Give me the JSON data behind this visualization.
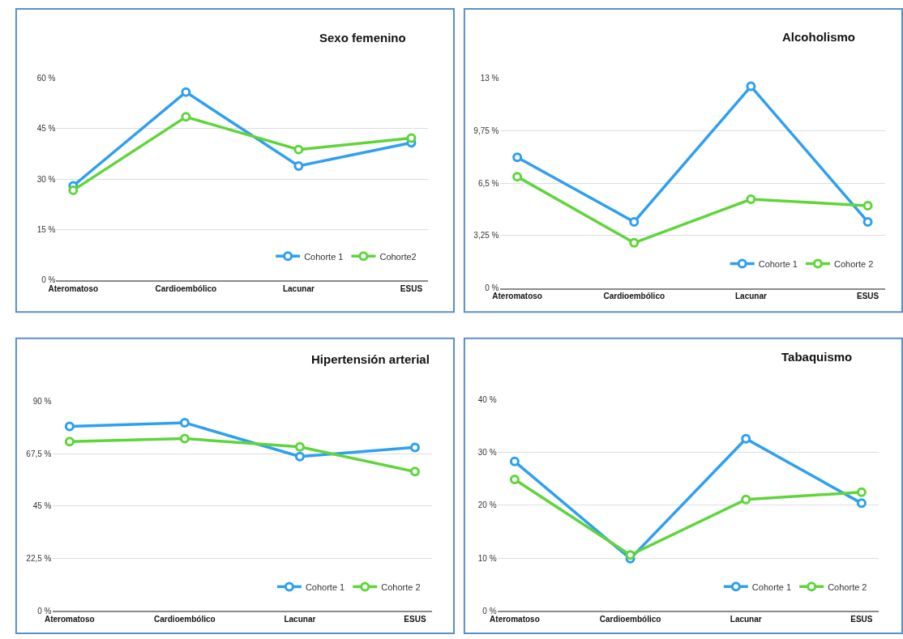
{
  "chart_data": [
    {
      "type": "line",
      "title": "Sexo femenino",
      "categories": [
        "Ateromatoso",
        "Cardioembólico",
        "Lacunar",
        "ESUS"
      ],
      "series": [
        {
          "name": "Cohorte 1",
          "color": "#2f9ff0",
          "values": [
            28.0,
            55.9,
            33.9,
            40.8
          ]
        },
        {
          "name": "Cohorte2",
          "color": "#5fd53b",
          "values": [
            26.7,
            48.5,
            38.8,
            42.2
          ]
        }
      ],
      "ylim": [
        0,
        60
      ],
      "yticks": [
        {
          "value": 0,
          "label": "0 %"
        },
        {
          "value": 15,
          "label": "15 %"
        },
        {
          "value": 30,
          "label": "30 %"
        },
        {
          "value": 45,
          "label": "45 %"
        },
        {
          "value": 60,
          "label": "60 %"
        }
      ],
      "grid": "y",
      "legend": "bottom right",
      "marker": "circle",
      "line_style": "solid"
    },
    {
      "type": "line",
      "title": "Alcoholismo",
      "categories": [
        "Ateromatoso",
        "Cardioembólico",
        "Lacunar",
        "ESUS"
      ],
      "series": [
        {
          "name": "Cohorte 1",
          "color": "#2f9ff0",
          "values": [
            8.1,
            4.1,
            12.5,
            4.1
          ]
        },
        {
          "name": "Cohorte 2",
          "color": "#5fd53b",
          "values": [
            6.9,
            2.8,
            5.5,
            5.1
          ]
        }
      ],
      "ylim": [
        0,
        13
      ],
      "yticks": [
        {
          "value": 0,
          "label": "0 %"
        },
        {
          "value": 3.25,
          "label": "3,25 %"
        },
        {
          "value": 6.5,
          "label": "6,5 %"
        },
        {
          "value": 9.75,
          "label": "9,75 %"
        },
        {
          "value": 13,
          "label": "13 %"
        }
      ],
      "grid": "y",
      "legend": "bottom right",
      "marker": "circle",
      "line_style": "solid"
    },
    {
      "type": "line",
      "title": "Hipertensión arterial",
      "categories": [
        "Ateromatoso",
        "Cardioembólico",
        "Lacunar",
        "ESUS"
      ],
      "series": [
        {
          "name": "Cohorte 1",
          "color": "#2f9ff0",
          "values": [
            79.2,
            80.8,
            66.3,
            70.2
          ]
        },
        {
          "name": "Cohorte 2",
          "color": "#5fd53b",
          "values": [
            72.7,
            74.0,
            70.4,
            59.8
          ]
        }
      ],
      "ylim": [
        0,
        90
      ],
      "yticks": [
        {
          "value": 0,
          "label": "0 %"
        },
        {
          "value": 22.5,
          "label": "22,5 %"
        },
        {
          "value": 45,
          "label": "45 %"
        },
        {
          "value": 67.5,
          "label": "67,5 %"
        },
        {
          "value": 90,
          "label": "90 %"
        }
      ],
      "grid": "y",
      "legend": "bottom right",
      "marker": "circle",
      "line_style": "solid"
    },
    {
      "type": "line",
      "title": "Tabaquismo",
      "categories": [
        "Ateromatoso",
        "Cardioembólico",
        "Lacunar",
        "ESUS"
      ],
      "series": [
        {
          "name": "Cohorte 1",
          "color": "#2f9ff0",
          "values": [
            28.3,
            9.9,
            32.6,
            20.4
          ]
        },
        {
          "name": "Cohorte 2",
          "color": "#5fd53b",
          "values": [
            24.9,
            10.6,
            21.1,
            22.5
          ]
        }
      ],
      "ylim": [
        0,
        40
      ],
      "yticks": [
        {
          "value": 0,
          "label": "0 %"
        },
        {
          "value": 10,
          "label": "10 %"
        },
        {
          "value": 20,
          "label": "20 %"
        },
        {
          "value": 30,
          "label": "30 %"
        },
        {
          "value": 40,
          "label": "40 %"
        }
      ],
      "grid": "y",
      "legend": "bottom right",
      "marker": "circle",
      "line_style": "solid"
    }
  ]
}
